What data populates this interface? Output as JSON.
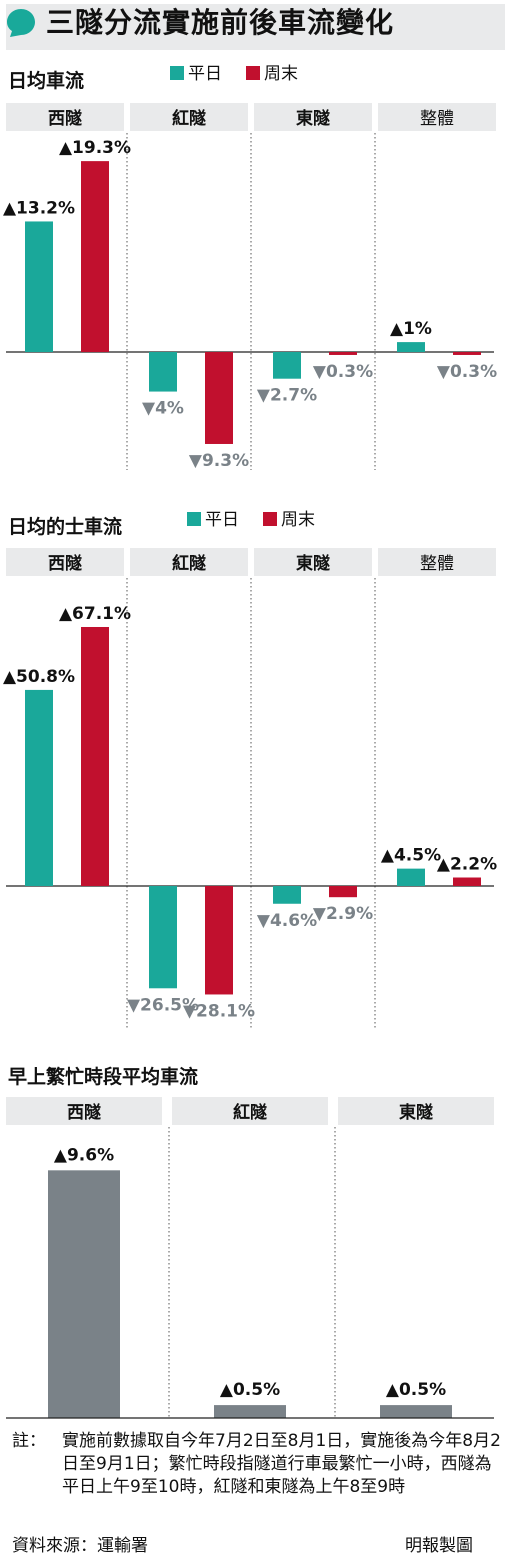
{
  "title": "三隧分流實施前後車流變化",
  "colors": {
    "weekday": "#1aa89a",
    "weekend": "#c1102e",
    "neutral": "#7a8288",
    "panel": "#e9eaeb",
    "bubble": "#19a99a"
  },
  "chart_data": [
    {
      "type": "bar",
      "title": "日均車流",
      "categories": [
        "西隧",
        "紅隧",
        "東隧",
        "整體"
      ],
      "series": [
        {
          "name": "平日",
          "values": [
            13.2,
            -4,
            -2.7,
            1
          ]
        },
        {
          "name": "周末",
          "values": [
            19.3,
            -9.3,
            -0.3,
            -0.3
          ]
        }
      ],
      "labels": [
        [
          "▲13.2%",
          "▲19.3%"
        ],
        [
          "▼4%",
          "▼9.3%"
        ],
        [
          "▼2.7%",
          "▼0.3%"
        ],
        [
          "▲1%",
          "▼0.3%"
        ]
      ],
      "legend": [
        "平日",
        "周末"
      ]
    },
    {
      "type": "bar",
      "title": "日均的士車流",
      "categories": [
        "西隧",
        "紅隧",
        "東隧",
        "整體"
      ],
      "series": [
        {
          "name": "平日",
          "values": [
            50.8,
            -26.5,
            -4.6,
            4.5
          ]
        },
        {
          "name": "周末",
          "values": [
            67.1,
            -28.1,
            -2.9,
            2.2
          ]
        }
      ],
      "labels": [
        [
          "▲50.8%",
          "▲67.1%"
        ],
        [
          "▼26.5%",
          "▼28.1%"
        ],
        [
          "▼4.6%",
          "▼2.9%"
        ],
        [
          "▲4.5%",
          "▲2.2%"
        ]
      ],
      "legend": [
        "平日",
        "周末"
      ]
    },
    {
      "type": "bar",
      "title": "早上繁忙時段平均車流",
      "categories": [
        "西隧",
        "紅隧",
        "東隧"
      ],
      "values": [
        9.6,
        0.5,
        0.5
      ],
      "labels": [
        "▲9.6%",
        "▲0.5%",
        "▲0.5%"
      ]
    }
  ],
  "footnote": {
    "label": "註：",
    "text": "實施前數據取自今年7月2日至8月1日，實施後為今年8月2日至9月1日；繁忙時段指隧道行車最繁忙一小時，西隧為平日上午9至10時，紅隧和東隧為上午8至9時"
  },
  "source": "資料來源：運輸署",
  "credit": "明報製圖"
}
